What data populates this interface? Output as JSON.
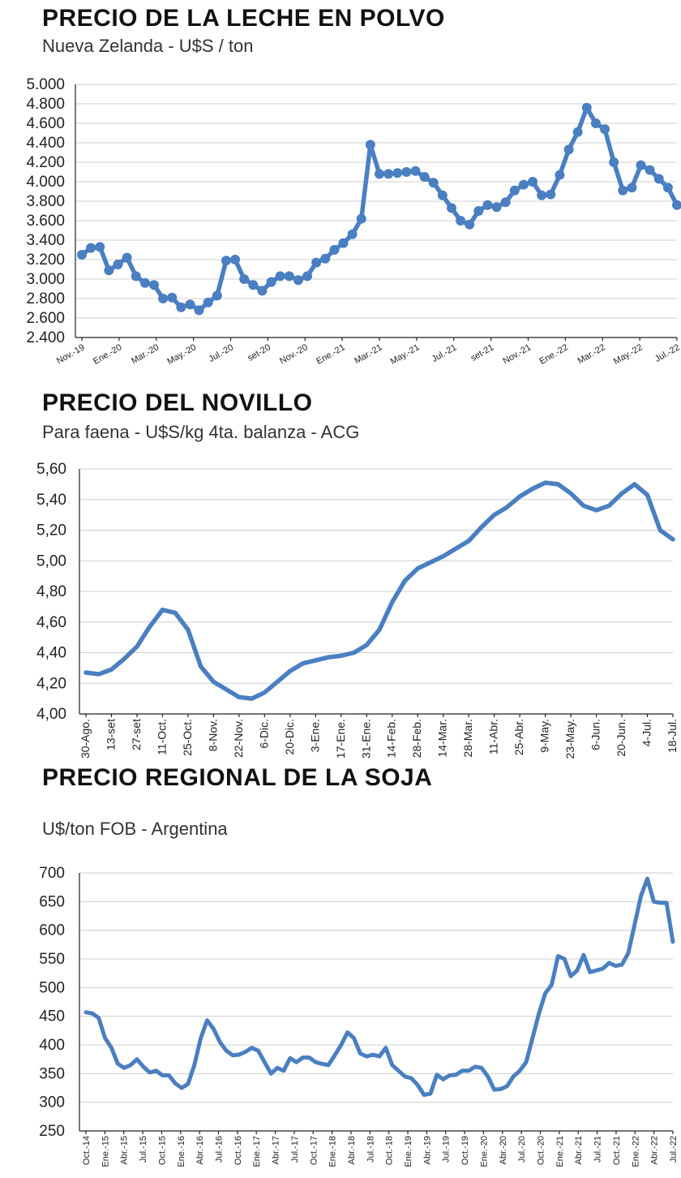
{
  "chart_data": [
    {
      "type": "line",
      "title": "PRECIO DE LA LECHE EN POLVO",
      "subtitle": "Nueva Zelanda - U$S / ton",
      "ylim": [
        2400,
        5000
      ],
      "yticks": [
        "2.400",
        "2.600",
        "2.800",
        "3.000",
        "3.200",
        "3.400",
        "3.600",
        "3.800",
        "4.000",
        "4.200",
        "4.400",
        "4.600",
        "4.800",
        "5.000"
      ],
      "x_tick_labels": [
        "Nov.-19",
        "Ene.-20",
        "Mar.-20",
        "May.-20",
        "Jul.-20",
        "set-20",
        "Nov.-20",
        "Ene.-21",
        "Mar.-21",
        "May.-21",
        "Jul.-21",
        "set-21",
        "Nov.-21",
        "Ene.-22",
        "Mar.-22",
        "May.-22",
        "Jul.-22"
      ],
      "markers": true,
      "series": [
        {
          "name": "Leche en polvo",
          "values": [
            3250,
            3320,
            3330,
            3090,
            3150,
            3220,
            3030,
            2960,
            2940,
            2800,
            2810,
            2710,
            2740,
            2680,
            2760,
            2830,
            3190,
            3200,
            3000,
            2940,
            2880,
            2970,
            3030,
            3030,
            2990,
            3030,
            3170,
            3210,
            3300,
            3370,
            3460,
            3620,
            4380,
            4080,
            4080,
            4090,
            4100,
            4110,
            4050,
            3990,
            3860,
            3730,
            3600,
            3560,
            3700,
            3760,
            3740,
            3790,
            3910,
            3970,
            4000,
            3860,
            3870,
            4070,
            4330,
            4510,
            4760,
            4600,
            4540,
            4200,
            3910,
            3940,
            4170,
            4120,
            4030,
            3940,
            3760
          ]
        }
      ]
    },
    {
      "type": "line",
      "title": "PRECIO DEL NOVILLO",
      "subtitle": "Para faena - U$S/kg 4ta. balanza - ACG",
      "ylim": [
        4.0,
        5.6
      ],
      "yticks": [
        "4,00",
        "4,20",
        "4,40",
        "4,60",
        "4,80",
        "5,00",
        "5,20",
        "5,40",
        "5,60"
      ],
      "x_tick_labels": [
        "30-Ago.",
        "13-set",
        "27-set",
        "11-Oct.",
        "25-Oct.",
        "8-Nov.",
        "22-Nov.",
        "6-Dic.",
        "20-Dic.",
        "3-Ene.",
        "17-Ene.",
        "31-Ene.",
        "14-Feb.",
        "28-Feb.",
        "14-Mar.",
        "28-Mar.",
        "11-Abr.",
        "25-Abr.",
        "9-May.",
        "23-May.",
        "6-Jun.",
        "20-Jun.",
        "4-Jul.",
        "18-Jul."
      ],
      "markers": false,
      "series": [
        {
          "name": "Novillo",
          "values": [
            4.27,
            4.26,
            4.29,
            4.36,
            4.44,
            4.57,
            4.68,
            4.66,
            4.55,
            4.31,
            4.21,
            4.16,
            4.11,
            4.1,
            4.14,
            4.21,
            4.28,
            4.33,
            4.35,
            4.37,
            4.38,
            4.4,
            4.45,
            4.55,
            4.73,
            4.87,
            4.95,
            4.99,
            5.03,
            5.08,
            5.13,
            5.22,
            5.3,
            5.35,
            5.42,
            5.47,
            5.51,
            5.5,
            5.44,
            5.36,
            5.33,
            5.36,
            5.44,
            5.5,
            5.43,
            5.2,
            5.14
          ]
        }
      ]
    },
    {
      "type": "line",
      "title": "PRECIO REGIONAL DE LA SOJA",
      "subtitle": "U$/ton FOB - Argentina",
      "ylim": [
        250,
        700
      ],
      "yticks": [
        "250",
        "300",
        "350",
        "400",
        "450",
        "500",
        "550",
        "600",
        "650",
        "700"
      ],
      "x_tick_labels": [
        "Oct.-14",
        "Ene.-15",
        "Abr.-15",
        "Jul.-15",
        "Oct.-15",
        "Ene.-16",
        "Abr.-16",
        "Jul.-16",
        "Oct.-16",
        "Ene.-17",
        "Abr.-17",
        "Jul.-17",
        "Oct.-17",
        "Ene.-18",
        "Abr.-18",
        "Jul.-18",
        "Oct.-18",
        "Ene.-19",
        "Abr.-19",
        "Jul.-19",
        "Oct.-19",
        "Ene.-20",
        "Abr.-20",
        "Jul.-20",
        "Oct.-20",
        "Ene.-21",
        "Abr.-21",
        "Jul.-21",
        "Oct.-21",
        "Ene.-22",
        "Abr.-22",
        "Jul.-22"
      ],
      "markers": false,
      "series": [
        {
          "name": "Soja",
          "values": [
            457,
            455,
            447,
            412,
            395,
            367,
            360,
            365,
            375,
            362,
            352,
            355,
            347,
            347,
            333,
            325,
            332,
            365,
            412,
            443,
            428,
            405,
            390,
            382,
            383,
            388,
            395,
            390,
            370,
            350,
            360,
            355,
            377,
            370,
            378,
            378,
            370,
            367,
            365,
            382,
            400,
            422,
            412,
            385,
            380,
            383,
            380,
            395,
            365,
            355,
            345,
            342,
            330,
            313,
            315,
            348,
            340,
            347,
            348,
            355,
            355,
            362,
            360,
            345,
            322,
            323,
            328,
            345,
            355,
            370,
            412,
            455,
            490,
            505,
            555,
            550,
            520,
            530,
            557,
            527,
            530,
            533,
            543,
            538,
            540,
            560,
            610,
            660,
            690,
            650,
            648,
            648,
            580
          ]
        }
      ]
    }
  ]
}
